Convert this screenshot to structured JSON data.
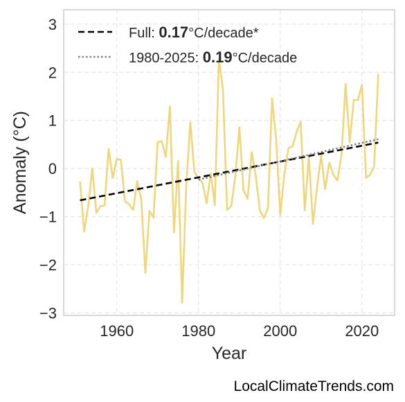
{
  "chart_data": {
    "type": "line",
    "xlabel": "Year",
    "ylabel": "Anomaly (°C)",
    "xlim": [
      1947,
      2028
    ],
    "ylim": [
      -3.05,
      3.3
    ],
    "x_ticks": [
      1960,
      1980,
      2000,
      2020
    ],
    "x_tick_labels": [
      "1960",
      "1980",
      "2000",
      "2020"
    ],
    "y_ticks": [
      -3,
      -2,
      -1,
      0,
      1,
      2,
      3
    ],
    "y_tick_labels": [
      "−3",
      "−2",
      "−1",
      "0",
      "1",
      "2",
      "3"
    ],
    "grid": true,
    "legend_position": "top-left",
    "series": [
      {
        "type": "line",
        "color": "#f0d67a",
        "x": [
          1951,
          1952,
          1953,
          1954,
          1955,
          1956,
          1957,
          1958,
          1959,
          1960,
          1961,
          1962,
          1963,
          1964,
          1965,
          1966,
          1967,
          1968,
          1969,
          1970,
          1971,
          1972,
          1973,
          1974,
          1975,
          1976,
          1977,
          1978,
          1979,
          1980,
          1981,
          1982,
          1983,
          1984,
          1985,
          1986,
          1987,
          1988,
          1989,
          1990,
          1991,
          1992,
          1993,
          1994,
          1995,
          1996,
          1997,
          1998,
          1999,
          2000,
          2001,
          2002,
          2003,
          2004,
          2005,
          2006,
          2007,
          2008,
          2009,
          2010,
          2011,
          2012,
          2013,
          2014,
          2015,
          2016,
          2017,
          2018,
          2019,
          2020,
          2021,
          2022,
          2023,
          2024
        ],
        "y": [
          -0.27,
          -1.31,
          -0.78,
          0.0,
          -0.92,
          -0.78,
          -0.77,
          0.41,
          -0.2,
          0.2,
          0.18,
          -0.68,
          -0.74,
          -0.86,
          -0.26,
          -0.65,
          -2.17,
          -0.88,
          -1.02,
          0.55,
          0.57,
          0.24,
          1.29,
          -1.33,
          0.16,
          -2.79,
          -0.36,
          0.96,
          -0.07,
          -0.2,
          -0.3,
          -0.72,
          -0.1,
          -0.76,
          2.28,
          1.64,
          -0.86,
          -0.78,
          -0.16,
          0.86,
          -0.45,
          -0.63,
          0.34,
          -0.15,
          -0.87,
          -1.03,
          -0.82,
          1.46,
          0.6,
          -0.97,
          -0.12,
          0.42,
          0.46,
          0.76,
          0.97,
          -0.87,
          0.26,
          -1.15,
          -0.4,
          0.28,
          -0.43,
          0.12,
          -0.13,
          -0.25,
          0.28,
          1.76,
          0.54,
          1.43,
          1.42,
          1.74,
          -0.19,
          -0.13,
          0.05,
          1.97
        ]
      },
      {
        "type": "trend",
        "style": "dashed",
        "color": "#000000",
        "x": [
          1951,
          2024
        ],
        "y": [
          -0.66,
          0.54
        ]
      },
      {
        "type": "trend",
        "style": "dotted",
        "color": "#808080",
        "x": [
          1980,
          2024
        ],
        "y": [
          -0.23,
          0.61
        ]
      }
    ],
    "legend": [
      {
        "style": "dashed",
        "color": "#000000",
        "prefix": "Full: ",
        "value": "0.17",
        "suffix": "°C/decade*"
      },
      {
        "style": "dotted",
        "color": "#808080",
        "prefix": "1980-2025: ",
        "value": "0.19",
        "suffix": "°C/decade"
      }
    ]
  },
  "watermark": "LocalClimateTrends.com"
}
